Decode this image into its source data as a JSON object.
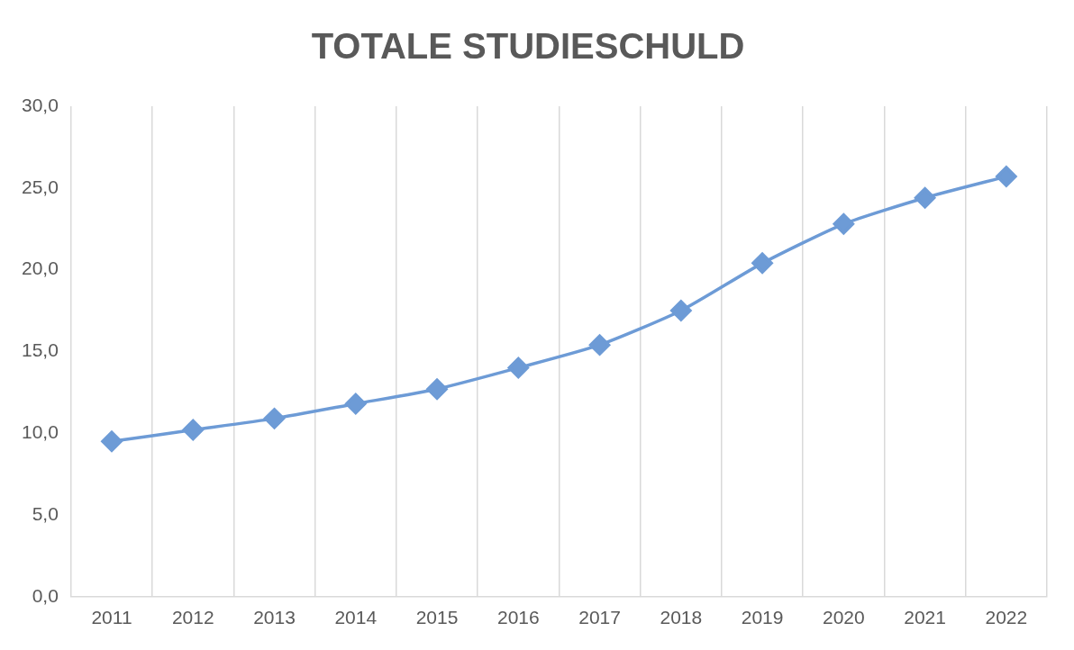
{
  "chart_data": {
    "type": "line",
    "title": "TOTALE STUDIESCHULD",
    "categories": [
      "2011",
      "2012",
      "2013",
      "2014",
      "2015",
      "2016",
      "2017",
      "2018",
      "2019",
      "2020",
      "2021",
      "2022"
    ],
    "values": [
      9.5,
      10.2,
      10.9,
      11.8,
      12.7,
      14.0,
      15.4,
      17.5,
      20.4,
      22.8,
      24.4,
      25.7
    ],
    "color": "#6d9bd6",
    "marker": "diamond",
    "ylim": [
      0,
      30
    ],
    "yticks": [
      {
        "value": 0,
        "label": "0,0"
      },
      {
        "value": 5,
        "label": "5,0"
      },
      {
        "value": 10,
        "label": "10,0"
      },
      {
        "value": 15,
        "label": "15,0"
      },
      {
        "value": 20,
        "label": "20,0"
      },
      {
        "value": 25,
        "label": "25,0"
      },
      {
        "value": 30,
        "label": "30,0"
      }
    ],
    "grid": "x"
  }
}
